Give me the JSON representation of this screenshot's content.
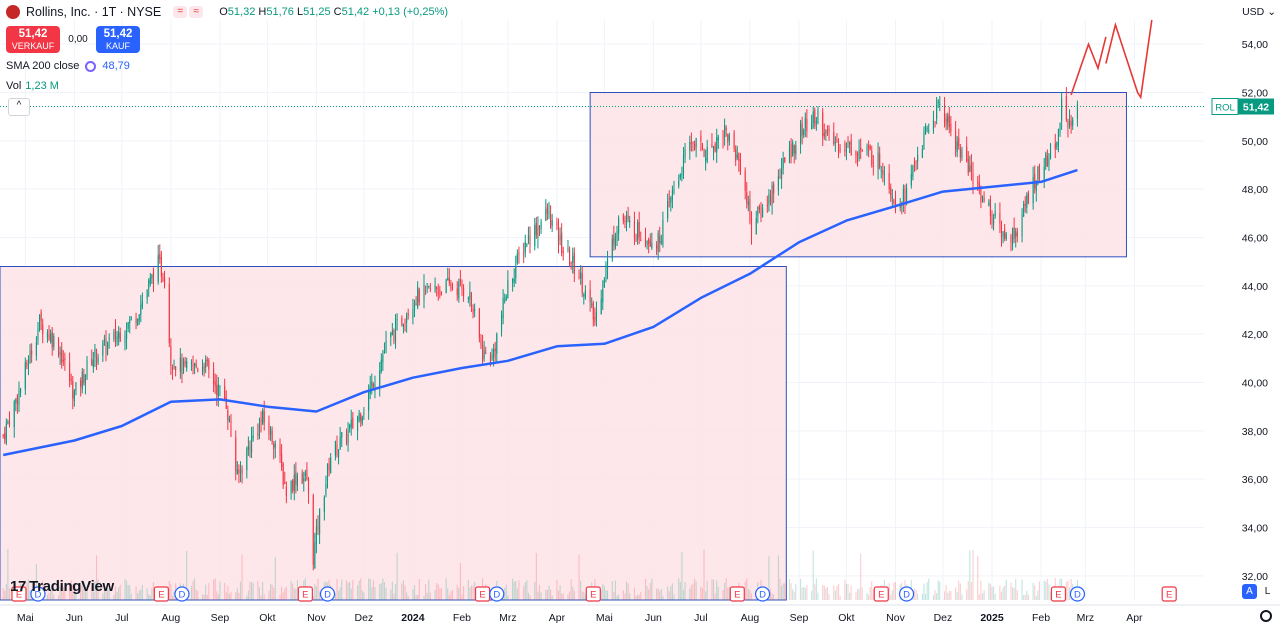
{
  "header": {
    "title": "Rollins, Inc. · 1T · NYSE",
    "ohlc_o_label": "O",
    "ohlc_o": "51,32",
    "ohlc_h_label": "H",
    "ohlc_h": "51,76",
    "ohlc_l_label": "L",
    "ohlc_l": "51,25",
    "ohlc_c_label": "C",
    "ohlc_c": "51,42",
    "change": "+0,13 (+0,25%)"
  },
  "trade": {
    "sell_price": "51,42",
    "sell_label": "VERKAUF",
    "spread": "0,00",
    "buy_price": "51,42",
    "buy_label": "KAUF"
  },
  "indicators": {
    "sma_label": "SMA 200 close",
    "sma_value": "48,79",
    "vol_label": "Vol",
    "vol_value": "1,23 M"
  },
  "currency": "USD",
  "brand": "TradingView",
  "bottom_badges": {
    "a": "A",
    "l": "L"
  },
  "colors": {
    "up": "#089981",
    "down": "#f23645",
    "sma": "#2962ff",
    "box_fill": "#fde3e6",
    "box_stroke": "#2f4fbf",
    "arrow": "#e53935",
    "grid": "#f0f3fa",
    "last_price_label": "#089981"
  },
  "chart_data": {
    "type": "candlestick",
    "symbol_label": "ROL",
    "last_price": 51.42,
    "last_price_label": "51,42",
    "ylim": [
      31.0,
      55.0
    ],
    "y_ticks": [
      "32,00",
      "34,00",
      "36,00",
      "38,00",
      "40,00",
      "42,00",
      "44,00",
      "46,00",
      "48,00",
      "50,00",
      "52,00",
      "54,00"
    ],
    "y_tick_values": [
      32,
      34,
      36,
      38,
      40,
      42,
      44,
      46,
      48,
      50,
      52,
      54
    ],
    "x_range": [
      "2023-04-15",
      "2025-05-15"
    ],
    "x_ticks": [
      {
        "label": "Mai",
        "date": "2023-05-01"
      },
      {
        "label": "Jun",
        "date": "2023-06-01"
      },
      {
        "label": "Jul",
        "date": "2023-07-01"
      },
      {
        "label": "Aug",
        "date": "2023-08-01"
      },
      {
        "label": "Sep",
        "date": "2023-09-01"
      },
      {
        "label": "Okt",
        "date": "2023-10-01"
      },
      {
        "label": "Nov",
        "date": "2023-11-01"
      },
      {
        "label": "Dez",
        "date": "2023-12-01"
      },
      {
        "label": "2024",
        "date": "2024-01-01",
        "bold": true
      },
      {
        "label": "Feb",
        "date": "2024-02-01"
      },
      {
        "label": "Mrz",
        "date": "2024-03-01"
      },
      {
        "label": "Apr",
        "date": "2024-04-01"
      },
      {
        "label": "Mai",
        "date": "2024-05-01"
      },
      {
        "label": "Jun",
        "date": "2024-06-01"
      },
      {
        "label": "Jul",
        "date": "2024-07-01"
      },
      {
        "label": "Aug",
        "date": "2024-08-01"
      },
      {
        "label": "Sep",
        "date": "2024-09-01"
      },
      {
        "label": "Okt",
        "date": "2024-10-01"
      },
      {
        "label": "Nov",
        "date": "2024-11-01"
      },
      {
        "label": "Dez",
        "date": "2024-12-01"
      },
      {
        "label": "2025",
        "date": "2025-01-01",
        "bold": true
      },
      {
        "label": "Feb",
        "date": "2025-02-01"
      },
      {
        "label": "Mrz",
        "date": "2025-03-01"
      },
      {
        "label": "Apr",
        "date": "2025-04-01"
      }
    ],
    "price_path": [
      [
        "2023-04-17",
        37.8
      ],
      [
        "2023-04-28",
        39.8
      ],
      [
        "2023-05-10",
        42.5
      ],
      [
        "2023-05-22",
        41.5
      ],
      [
        "2023-06-01",
        39.5
      ],
      [
        "2023-06-12",
        41.0
      ],
      [
        "2023-06-26",
        41.8
      ],
      [
        "2023-07-10",
        42.8
      ],
      [
        "2023-07-24",
        44.9
      ],
      [
        "2023-07-28",
        44.4
      ],
      [
        "2023-08-01",
        41.0
      ],
      [
        "2023-08-10",
        40.5
      ],
      [
        "2023-08-22",
        40.8
      ],
      [
        "2023-08-30",
        39.8
      ],
      [
        "2023-09-05",
        39.2
      ],
      [
        "2023-09-12",
        36.0
      ],
      [
        "2023-09-20",
        37.5
      ],
      [
        "2023-09-28",
        38.5
      ],
      [
        "2023-10-06",
        37.5
      ],
      [
        "2023-10-13",
        35.5
      ],
      [
        "2023-10-20",
        36.2
      ],
      [
        "2023-10-26",
        36.0
      ],
      [
        "2023-10-30",
        32.8
      ],
      [
        "2023-11-03",
        34.5
      ],
      [
        "2023-11-10",
        37.0
      ],
      [
        "2023-11-20",
        37.8
      ],
      [
        "2023-12-01",
        39.0
      ],
      [
        "2023-12-15",
        41.5
      ],
      [
        "2024-01-02",
        43.5
      ],
      [
        "2024-01-12",
        43.8
      ],
      [
        "2024-01-24",
        44.0
      ],
      [
        "2024-02-05",
        43.8
      ],
      [
        "2024-02-14",
        41.2
      ],
      [
        "2024-02-20",
        41.0
      ],
      [
        "2024-03-01",
        44.0
      ],
      [
        "2024-03-12",
        45.8
      ],
      [
        "2024-03-26",
        47.0
      ],
      [
        "2024-04-05",
        45.5
      ],
      [
        "2024-04-15",
        44.5
      ],
      [
        "2024-04-25",
        42.5
      ],
      [
        "2024-05-01",
        44.5
      ],
      [
        "2024-05-10",
        46.8
      ],
      [
        "2024-05-24",
        46.2
      ],
      [
        "2024-06-04",
        45.8
      ],
      [
        "2024-06-14",
        48.0
      ],
      [
        "2024-06-25",
        50.0
      ],
      [
        "2024-07-05",
        49.5
      ],
      [
        "2024-07-16",
        50.5
      ],
      [
        "2024-07-26",
        49.0
      ],
      [
        "2024-08-02",
        46.5
      ],
      [
        "2024-08-12",
        47.5
      ],
      [
        "2024-08-22",
        49.0
      ],
      [
        "2024-09-03",
        50.5
      ],
      [
        "2024-09-13",
        51.0
      ],
      [
        "2024-09-20",
        50.0
      ],
      [
        "2024-10-01",
        49.8
      ],
      [
        "2024-10-14",
        49.5
      ],
      [
        "2024-10-24",
        49.0
      ],
      [
        "2024-11-01",
        47.5
      ],
      [
        "2024-11-08",
        47.8
      ],
      [
        "2024-11-15",
        49.5
      ],
      [
        "2024-11-22",
        50.5
      ],
      [
        "2024-11-29",
        51.5
      ],
      [
        "2024-12-09",
        50.0
      ],
      [
        "2024-12-20",
        48.5
      ],
      [
        "2025-01-02",
        46.8
      ],
      [
        "2025-01-10",
        46.0
      ],
      [
        "2025-01-17",
        46.3
      ],
      [
        "2025-01-27",
        48.3
      ],
      [
        "2025-02-05",
        49.2
      ],
      [
        "2025-02-12",
        50.2
      ],
      [
        "2025-02-14",
        52.0
      ],
      [
        "2025-02-18",
        50.3
      ],
      [
        "2025-02-24",
        51.4
      ]
    ],
    "sma_200": [
      [
        "2023-04-17",
        37.0
      ],
      [
        "2023-06-01",
        37.6
      ],
      [
        "2023-07-01",
        38.2
      ],
      [
        "2023-08-01",
        39.2
      ],
      [
        "2023-09-01",
        39.3
      ],
      [
        "2023-10-01",
        39.0
      ],
      [
        "2023-11-01",
        38.8
      ],
      [
        "2023-12-01",
        39.6
      ],
      [
        "2024-01-01",
        40.2
      ],
      [
        "2024-02-01",
        40.6
      ],
      [
        "2024-03-01",
        40.9
      ],
      [
        "2024-04-01",
        41.5
      ],
      [
        "2024-05-01",
        41.6
      ],
      [
        "2024-06-01",
        42.3
      ],
      [
        "2024-07-01",
        43.5
      ],
      [
        "2024-08-01",
        44.5
      ],
      [
        "2024-09-01",
        45.8
      ],
      [
        "2024-10-01",
        46.7
      ],
      [
        "2024-11-01",
        47.3
      ],
      [
        "2024-12-01",
        47.9
      ],
      [
        "2025-01-01",
        48.1
      ],
      [
        "2025-02-01",
        48.3
      ],
      [
        "2025-02-24",
        48.79
      ]
    ],
    "boxes": [
      {
        "from": "2023-04-15",
        "to": "2024-08-24",
        "top": 44.8,
        "bottom": 31.0
      },
      {
        "from": "2024-04-22",
        "to": "2025-03-27",
        "top": 52.0,
        "bottom": 45.2
      }
    ],
    "earnings_markers": [
      {
        "date": "2023-04-27",
        "label": "E"
      },
      {
        "date": "2023-07-26",
        "label": "E"
      },
      {
        "date": "2023-10-25",
        "label": "E"
      },
      {
        "date": "2024-02-14",
        "label": "E"
      },
      {
        "date": "2024-04-24",
        "label": "E"
      },
      {
        "date": "2024-07-24",
        "label": "E"
      },
      {
        "date": "2024-10-23",
        "label": "E"
      },
      {
        "date": "2025-02-12",
        "label": "E"
      },
      {
        "date": "2025-04-23",
        "label": "E"
      }
    ],
    "dividend_markers": [
      {
        "date": "2023-05-09",
        "label": "D"
      },
      {
        "date": "2023-08-08",
        "label": "D"
      },
      {
        "date": "2023-11-08",
        "label": "D"
      },
      {
        "date": "2024-02-23",
        "label": "D"
      },
      {
        "date": "2024-08-09",
        "label": "D"
      },
      {
        "date": "2024-11-08",
        "label": "D"
      },
      {
        "date": "2025-02-24",
        "label": "D"
      }
    ],
    "annotation_arrows": [
      {
        "points": [
          [
            "2025-02-20",
            51.9
          ],
          [
            "2025-03-03",
            54.0
          ],
          [
            "2025-03-09",
            53.0
          ],
          [
            "2025-03-14",
            54.3
          ]
        ]
      },
      {
        "points": [
          [
            "2025-03-14",
            53.2
          ],
          [
            "2025-03-20",
            54.8
          ],
          [
            "2025-04-03",
            52.0
          ],
          [
            "2025-04-05",
            51.8
          ],
          [
            "2025-04-12",
            55.0
          ]
        ]
      }
    ],
    "grid": true
  }
}
